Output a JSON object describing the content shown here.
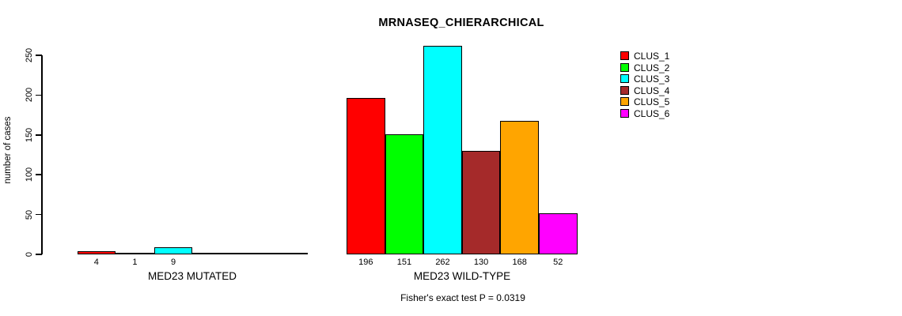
{
  "chart_data": {
    "type": "bar",
    "title": "MRNASEQ_CHIERARCHICAL",
    "ylabel": "number of cases",
    "xlabel": "",
    "ylim": [
      0,
      250
    ],
    "yticks": [
      0,
      50,
      100,
      150,
      200,
      250
    ],
    "grid": false,
    "legend_position": "top-right",
    "background_color": "#ffffff",
    "axis_color": "#000000",
    "legend": [
      {
        "label": "CLUS_1",
        "color": "#ff0000"
      },
      {
        "label": "CLUS_2",
        "color": "#00ff00"
      },
      {
        "label": "CLUS_3",
        "color": "#00ffff"
      },
      {
        "label": "CLUS_4",
        "color": "#a52a2a"
      },
      {
        "label": "CLUS_5",
        "color": "#ffa500"
      },
      {
        "label": "CLUS_6",
        "color": "#ff00ff"
      }
    ],
    "groups": [
      {
        "label": "MED23 MUTATED",
        "values": [
          4,
          1,
          9,
          0,
          0,
          0
        ],
        "bar_labels": [
          "4",
          "1",
          "9",
          "",
          "",
          ""
        ]
      },
      {
        "label": "MED23 WILD-TYPE",
        "values": [
          196,
          151,
          262,
          130,
          168,
          52
        ],
        "bar_labels": [
          "196",
          "151",
          "262",
          "130",
          "168",
          "52"
        ]
      }
    ],
    "annotation": "Fisher's exact test P = 0.0319"
  }
}
